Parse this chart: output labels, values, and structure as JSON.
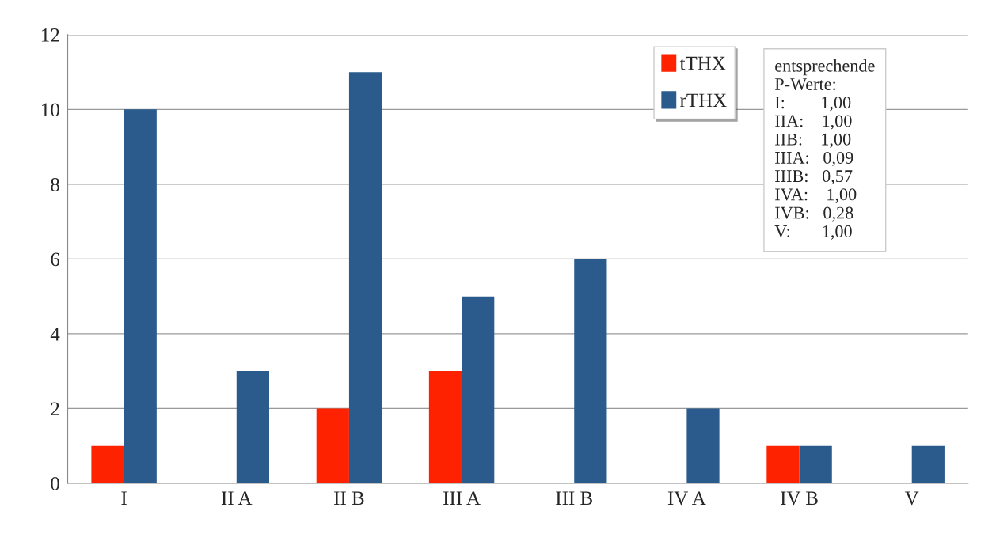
{
  "chart_data": {
    "type": "bar",
    "categories": [
      "I",
      "II A",
      "II B",
      "III A",
      "III B",
      "IV A",
      "IV B",
      "V"
    ],
    "series": [
      {
        "name": "tTHX",
        "color": "#ff2200",
        "values": [
          1,
          0,
          2,
          3,
          0,
          0,
          1,
          0
        ]
      },
      {
        "name": "rTHX",
        "color": "#2a5b8c",
        "values": [
          10,
          3,
          11,
          5,
          6,
          2,
          1,
          1
        ]
      }
    ],
    "ylim": [
      0,
      12
    ],
    "yticks": [
      0,
      2,
      4,
      6,
      8,
      10,
      12
    ],
    "grid": "y",
    "legend": "top right",
    "annotations": [
      "entsprechende",
      "P-Werte:",
      "I:        1,00",
      "IIA:    1,00",
      "IIB:    1,00",
      "IIIA:   0,09",
      "IIIB:   0,57",
      "IVA:    1,00",
      "IVB:   0,28",
      "V:       1,00"
    ]
  }
}
